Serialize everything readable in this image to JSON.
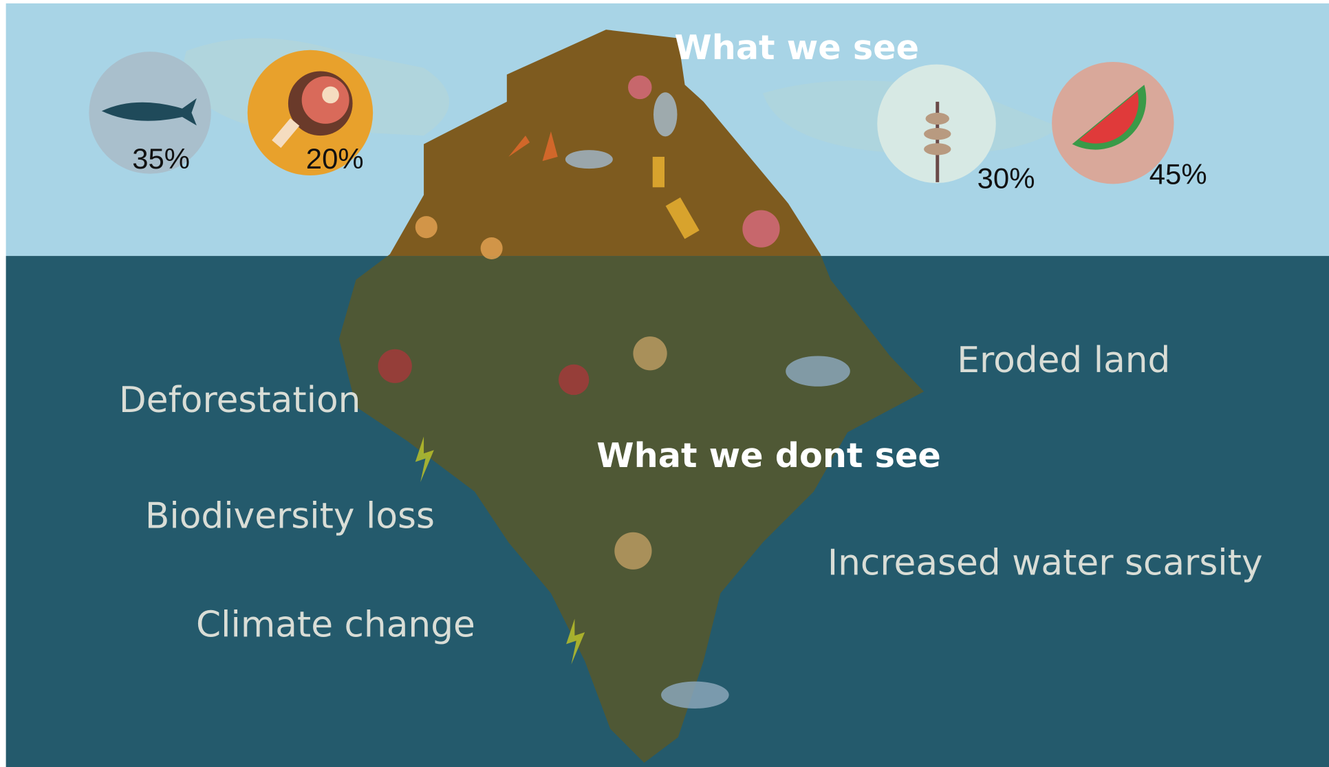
{
  "above": {
    "title": "What we see",
    "items": [
      {
        "label": "35%"
      },
      {
        "label": "20%"
      },
      {
        "label": "30%"
      },
      {
        "label": "45%"
      }
    ]
  },
  "below": {
    "title": "What we dont see",
    "impacts": [
      "Deforestation",
      "Biodiversity loss",
      "Climate change",
      "Eroded land",
      "Increased water scarsity"
    ]
  }
}
